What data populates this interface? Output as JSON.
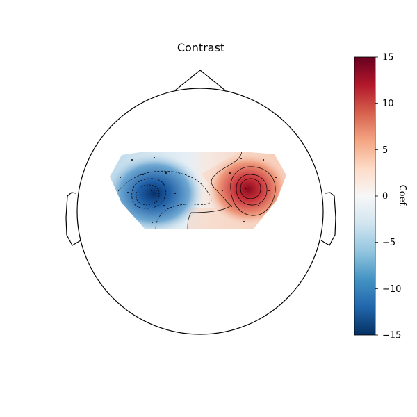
{
  "chart_data": {
    "type": "heatmap",
    "title": "Contrast",
    "colorbar": {
      "label": "Coef.",
      "range": [
        -15,
        15
      ],
      "ticks": [
        15,
        10,
        5,
        0,
        -5,
        -10,
        -15
      ],
      "tick_labels": [
        "15",
        "10",
        "5",
        "0",
        "−5",
        "−10",
        "−15"
      ],
      "colormap": "RdBu_r",
      "stops": [
        "#053061",
        "#2166ac",
        "#4393c3",
        "#92c5de",
        "#d1e5f0",
        "#f7f7f7",
        "#fddbc7",
        "#f4a582",
        "#d6604d",
        "#b2182b",
        "#67001f"
      ]
    },
    "extrema": [
      {
        "region": "left hemisphere",
        "value": -13
      },
      {
        "region": "right hemisphere",
        "value": 13
      }
    ]
  },
  "colors": {
    "negative": "#2166ac",
    "positive": "#b2182b",
    "outline": "#000000"
  }
}
